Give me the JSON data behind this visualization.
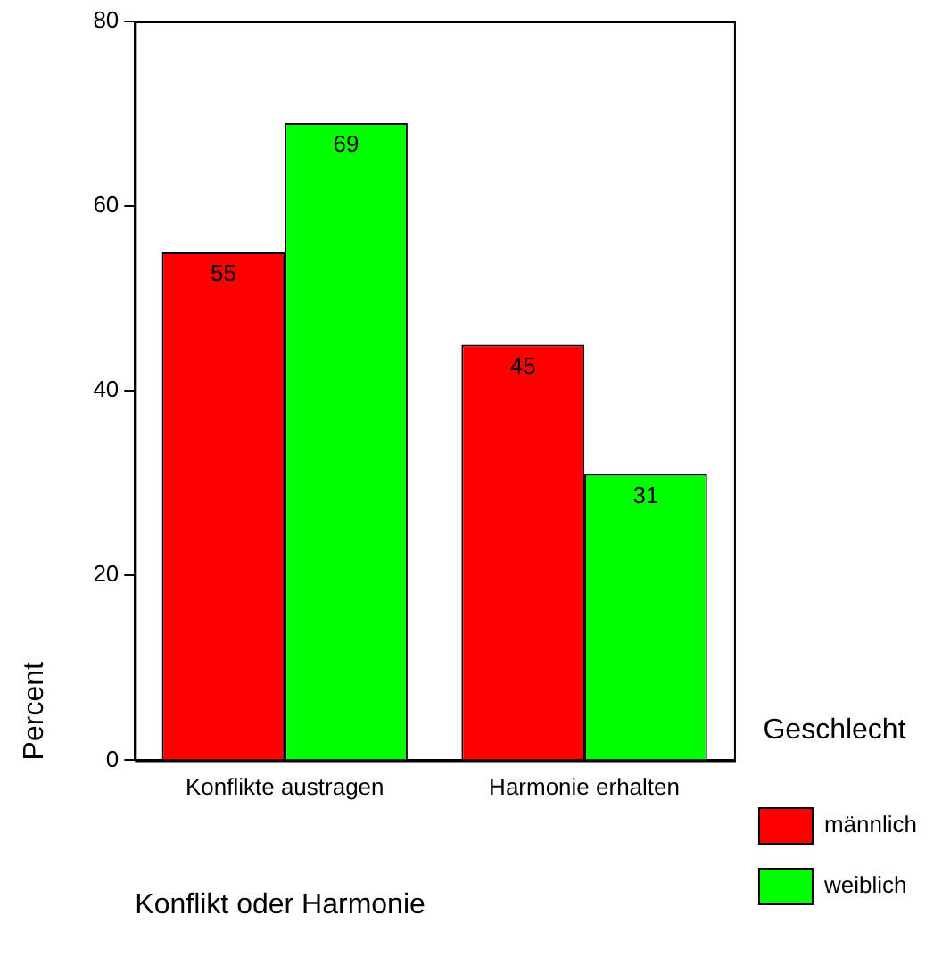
{
  "chart_data": {
    "type": "bar",
    "xlabel": "Konflikt oder Harmonie",
    "ylabel": "Percent",
    "legend_title": "Geschlecht",
    "legend": "right",
    "categories": [
      "Konflikte austragen",
      "Harmonie erhalten"
    ],
    "series": [
      {
        "name": "männlich",
        "color": "#ff0000",
        "values": [
          55,
          45
        ]
      },
      {
        "name": "weiblich",
        "color": "#00ff00",
        "values": [
          69,
          31
        ]
      }
    ],
    "ylim": [
      0,
      80
    ],
    "yticks": [
      0,
      20,
      40,
      60,
      80
    ],
    "grid": false,
    "data_labels": true
  }
}
